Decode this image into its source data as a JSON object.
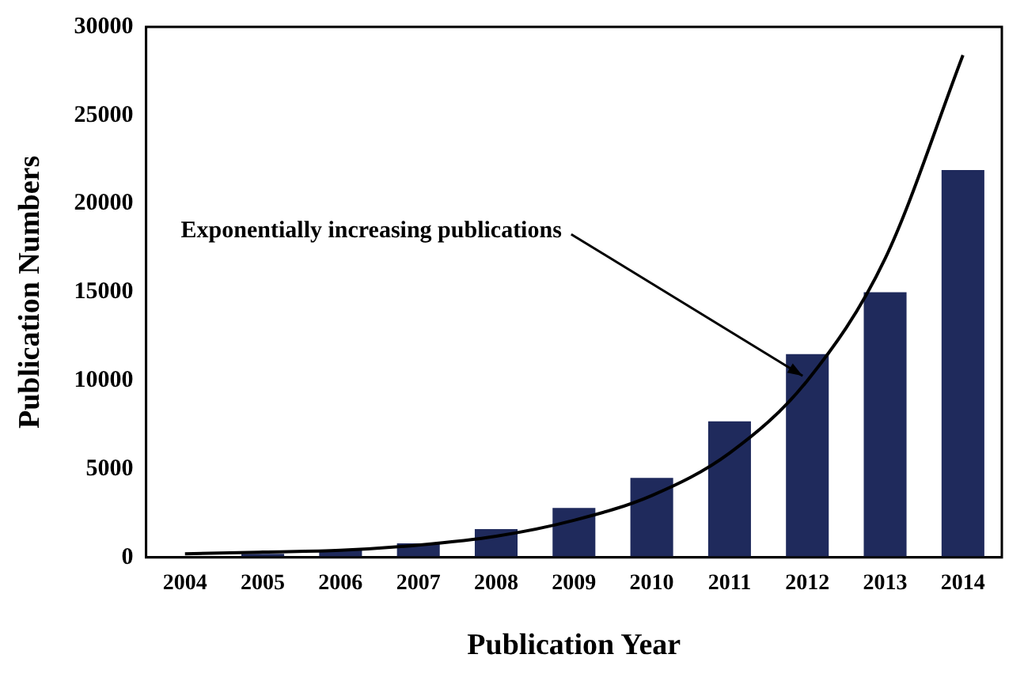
{
  "chart_data": {
    "type": "bar",
    "xlabel": "Publication Year",
    "ylabel": "Publication Numbers",
    "categories": [
      "2004",
      "2005",
      "2006",
      "2007",
      "2008",
      "2009",
      "2010",
      "2011",
      "2012",
      "2013",
      "2014"
    ],
    "series": [
      {
        "color": "#1f2a5c",
        "values": [
          null,
          200,
          400,
          800,
          1600,
          2800,
          4500,
          7700,
          11500,
          15000,
          21900
        ]
      },
      {
        "type": "line",
        "color": "#000000",
        "marker": "none",
        "values": [
          200,
          300,
          400,
          700,
          1200,
          2100,
          3500,
          5900,
          10000,
          16900,
          28400
        ]
      }
    ],
    "ylim": [
      0,
      30000
    ],
    "yticks": [
      0,
      5000,
      10000,
      15000,
      20000,
      25000,
      30000
    ],
    "grid": false,
    "legend": false,
    "annotations": [
      {
        "text": "Exponentially increasing publications",
        "x": "2012",
        "y": 10000
      }
    ]
  }
}
